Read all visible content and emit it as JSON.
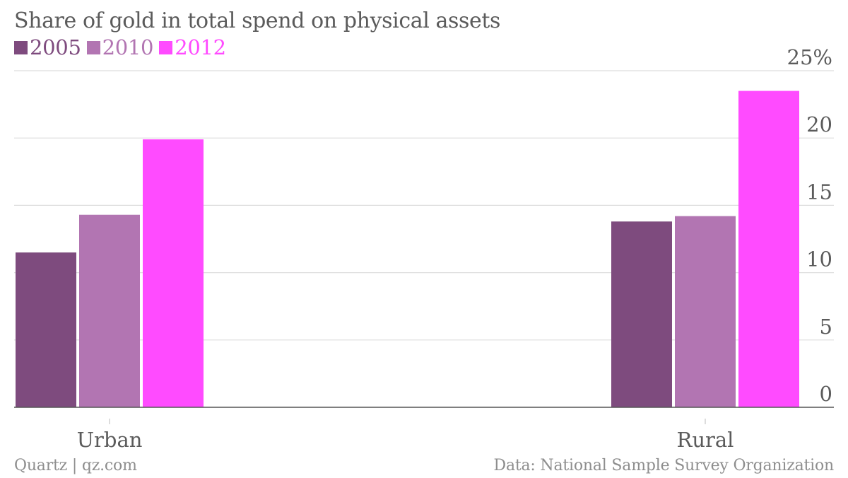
{
  "chart_data": {
    "type": "bar",
    "title": "Share of gold in total spend on physical assets",
    "categories": [
      "Urban",
      "Rural"
    ],
    "series": [
      {
        "name": "2005",
        "color": "#7e4b7e",
        "values": [
          11.5,
          13.8
        ]
      },
      {
        "name": "2010",
        "color": "#b275b2",
        "values": [
          14.3,
          14.2
        ]
      },
      {
        "name": "2012",
        "color": "#ff4bff",
        "values": [
          19.9,
          23.5
        ]
      }
    ],
    "ylim": [
      0,
      25
    ],
    "yticks": [
      "0",
      "5",
      "10",
      "15",
      "20",
      "25%"
    ],
    "yaxis_position": "right",
    "grid": true,
    "legend_position": "top-left"
  },
  "footer": {
    "source_left": "Quartz | qz.com",
    "source_right": "Data: National Sample Survey Organization"
  }
}
